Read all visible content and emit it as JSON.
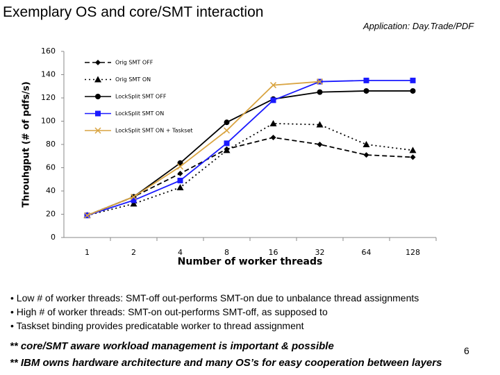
{
  "slide_title": "Exemplary OS and core/SMT interaction",
  "application": "Application: Day.Trade/PDF",
  "bullets": [
    "• Low # of worker threads: SMT-off out-performs SMT-on due to unbalance thread assignments",
    "• High # of worker threads: SMT-on out-performs SMT-off, as supposed to",
    "• Taskset binding provides predicatable worker to thread assignment"
  ],
  "notes": [
    "** core/SMT aware workload management is important & possible",
    "** IBM owns hardware architecture and many OS’s for easy cooperation between layers"
  ],
  "page_number": "6",
  "chart_data": {
    "type": "line",
    "x_label": "Number of worker threads",
    "y_label": "Throuhgput (# of pdfs/s)",
    "categories": [
      "1",
      "2",
      "4",
      "8",
      "16",
      "32",
      "64",
      "128"
    ],
    "ylim": [
      0,
      160
    ],
    "yticks": [
      0,
      20,
      40,
      60,
      80,
      100,
      120,
      140,
      160
    ],
    "series": [
      {
        "name": "Orig SMT OFF",
        "color": "#000000",
        "dash": "dashed",
        "marker": "diamond",
        "values": [
          19,
          35,
          55,
          76,
          86,
          80,
          71,
          69
        ]
      },
      {
        "name": "Orig SMT ON",
        "color": "#000000",
        "dash": "dotted",
        "marker": "triangle",
        "values": [
          19,
          29,
          43,
          75,
          98,
          97,
          80,
          75
        ]
      },
      {
        "name": "LockSplit SMT OFF",
        "color": "#000000",
        "dash": "solid",
        "marker": "circle",
        "values": [
          19,
          35,
          64,
          99,
          119,
          125,
          126,
          126
        ]
      },
      {
        "name": "LockSplit SMT ON",
        "color": "#1a1aff",
        "dash": "solid",
        "marker": "square",
        "values": [
          19,
          32,
          49,
          81,
          118,
          134,
          135,
          135
        ]
      },
      {
        "name": "LockSplit SMT ON + Taskset",
        "color": "#d9a441",
        "dash": "solid",
        "marker": "x",
        "values": [
          19,
          35,
          61,
          92,
          131,
          134,
          null,
          null
        ]
      }
    ]
  }
}
